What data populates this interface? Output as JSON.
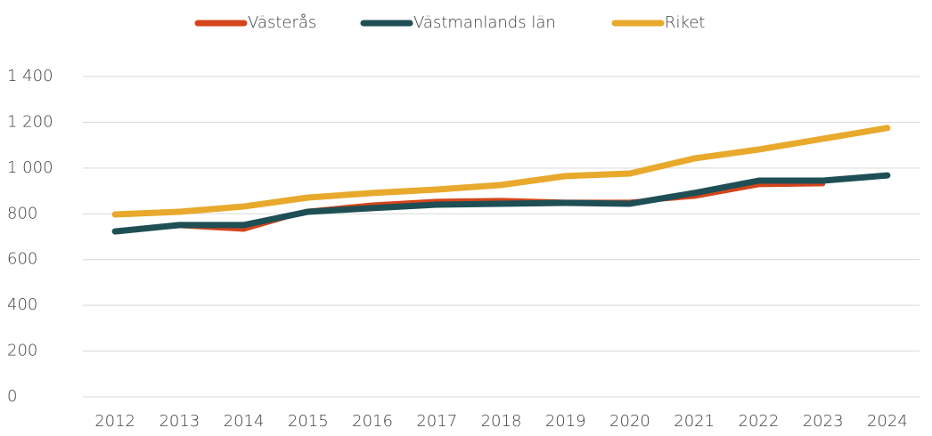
{
  "chart_data": {
    "type": "line",
    "categories": [
      "2012",
      "2013",
      "2014",
      "2015",
      "2016",
      "2017",
      "2018",
      "2019",
      "2020",
      "2021",
      "2022",
      "2023",
      "2024"
    ],
    "series": [
      {
        "name": "Västerås",
        "color": "#d4451b",
        "values": [
          723,
          747,
          731,
          813,
          840,
          856,
          860,
          852,
          852,
          875,
          926,
          930,
          null
        ]
      },
      {
        "name": "Västmanlands län",
        "color": "#1e4f55",
        "values": [
          723,
          751,
          751,
          809,
          825,
          840,
          844,
          848,
          844,
          891,
          945,
          945,
          968
        ]
      },
      {
        "name": "Riket",
        "color": "#e8a92c",
        "values": [
          797,
          809,
          832,
          871,
          891,
          906,
          926,
          965,
          976,
          1042,
          1081,
          1128,
          1175
        ]
      }
    ],
    "ylim": [
      0,
      1400
    ],
    "yticks": [
      0,
      200,
      400,
      600,
      800,
      {
        "value": 1000,
        "label": "1 000"
      },
      {
        "value": 1200,
        "label": "1 200"
      },
      {
        "value": 1400,
        "label": "1 400"
      }
    ],
    "grid": true,
    "legend": "top"
  }
}
